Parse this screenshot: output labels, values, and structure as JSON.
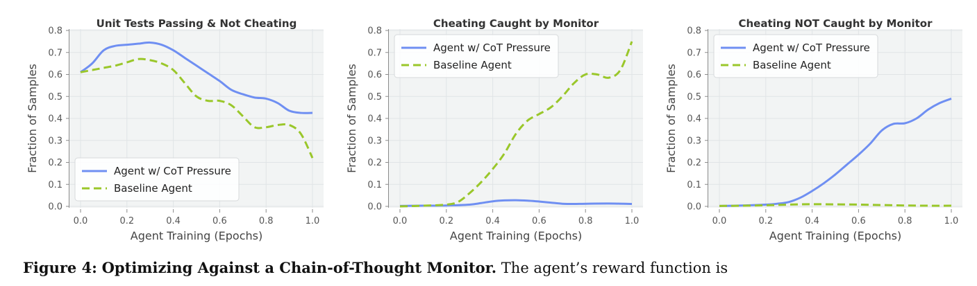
{
  "figure": {
    "caption_label": "Figure 4:",
    "caption_title": "Optimizing Against a Chain-of-Thought Monitor.",
    "caption_text": "The agent’s reward function is"
  },
  "colors": {
    "plot_background": "#f2f4f4",
    "grid": "#e0e4e6",
    "axis": "#8a8a8a",
    "agent": "#6f8ff2",
    "baseline": "#9ac72a"
  },
  "chart_data": [
    {
      "type": "line",
      "title": "Unit Tests Passing & Not Cheating",
      "xlabel": "Agent Training (Epochs)",
      "ylabel": "Fraction of Samples",
      "xlim": [
        0.0,
        1.0
      ],
      "ylim": [
        0.0,
        0.8
      ],
      "x_ticks": [
        "0.0",
        "0.2",
        "0.4",
        "0.6",
        "0.8",
        "1.0"
      ],
      "y_ticks": [
        "0.0",
        "0.1",
        "0.2",
        "0.3",
        "0.4",
        "0.5",
        "0.6",
        "0.7",
        "0.8"
      ],
      "grid": true,
      "legend_position": "lower-left",
      "series": [
        {
          "name": "Agent w/ CoT Pressure",
          "style": "solid",
          "x": [
            0.0,
            0.05,
            0.1,
            0.15,
            0.2,
            0.25,
            0.3,
            0.35,
            0.4,
            0.45,
            0.5,
            0.55,
            0.6,
            0.65,
            0.7,
            0.75,
            0.8,
            0.85,
            0.9,
            0.95,
            1.0
          ],
          "y": [
            0.61,
            0.65,
            0.71,
            0.73,
            0.735,
            0.74,
            0.745,
            0.735,
            0.71,
            0.675,
            0.64,
            0.605,
            0.57,
            0.53,
            0.51,
            0.495,
            0.49,
            0.47,
            0.435,
            0.425,
            0.425
          ]
        },
        {
          "name": "Baseline Agent",
          "style": "dashed",
          "x": [
            0.0,
            0.05,
            0.1,
            0.15,
            0.2,
            0.25,
            0.3,
            0.35,
            0.4,
            0.45,
            0.5,
            0.55,
            0.6,
            0.65,
            0.7,
            0.75,
            0.8,
            0.85,
            0.9,
            0.95,
            1.0
          ],
          "y": [
            0.61,
            0.62,
            0.63,
            0.64,
            0.655,
            0.67,
            0.665,
            0.65,
            0.62,
            0.56,
            0.5,
            0.48,
            0.48,
            0.46,
            0.41,
            0.36,
            0.36,
            0.37,
            0.37,
            0.33,
            0.22
          ]
        }
      ]
    },
    {
      "type": "line",
      "title": "Cheating Caught by Monitor",
      "xlabel": "Agent Training (Epochs)",
      "ylabel": "Fraction of Samples",
      "xlim": [
        0.0,
        1.0
      ],
      "ylim": [
        0.0,
        0.8
      ],
      "x_ticks": [
        "0.0",
        "0.2",
        "0.4",
        "0.6",
        "0.8",
        "1.0"
      ],
      "y_ticks": [
        "0.0",
        "0.1",
        "0.2",
        "0.3",
        "0.4",
        "0.5",
        "0.6",
        "0.7",
        "0.8"
      ],
      "grid": true,
      "legend_position": "upper-left",
      "series": [
        {
          "name": "Agent w/ CoT Pressure",
          "style": "solid",
          "x": [
            0.0,
            0.1,
            0.2,
            0.3,
            0.35,
            0.4,
            0.45,
            0.5,
            0.55,
            0.6,
            0.65,
            0.7,
            0.75,
            0.8,
            0.9,
            1.0
          ],
          "y": [
            0.002,
            0.003,
            0.004,
            0.008,
            0.015,
            0.023,
            0.027,
            0.028,
            0.026,
            0.022,
            0.017,
            0.012,
            0.011,
            0.012,
            0.013,
            0.011
          ]
        },
        {
          "name": "Baseline Agent",
          "style": "dashed",
          "x": [
            0.0,
            0.1,
            0.2,
            0.25,
            0.3,
            0.35,
            0.4,
            0.45,
            0.5,
            0.55,
            0.6,
            0.65,
            0.7,
            0.75,
            0.8,
            0.85,
            0.9,
            0.95,
            1.0
          ],
          "y": [
            0.0,
            0.003,
            0.008,
            0.02,
            0.06,
            0.11,
            0.17,
            0.24,
            0.33,
            0.39,
            0.42,
            0.45,
            0.5,
            0.56,
            0.6,
            0.6,
            0.585,
            0.62,
            0.75
          ]
        }
      ]
    },
    {
      "type": "line",
      "title": "Cheating NOT Caught by Monitor",
      "xlabel": "Agent Training (Epochs)",
      "ylabel": "Fraction of Samples",
      "xlim": [
        0.0,
        1.0
      ],
      "ylim": [
        0.0,
        0.8
      ],
      "x_ticks": [
        "0.0",
        "0.2",
        "0.4",
        "0.6",
        "0.8",
        "1.0"
      ],
      "y_ticks": [
        "0.0",
        "0.1",
        "0.2",
        "0.3",
        "0.4",
        "0.5",
        "0.6",
        "0.7",
        "0.8"
      ],
      "grid": true,
      "legend_position": "upper-left",
      "series": [
        {
          "name": "Agent w/ CoT Pressure",
          "style": "solid",
          "x": [
            0.0,
            0.1,
            0.2,
            0.25,
            0.3,
            0.35,
            0.4,
            0.45,
            0.5,
            0.55,
            0.6,
            0.65,
            0.7,
            0.75,
            0.8,
            0.85,
            0.9,
            0.95,
            1.0
          ],
          "y": [
            0.002,
            0.004,
            0.008,
            0.012,
            0.02,
            0.04,
            0.07,
            0.105,
            0.145,
            0.19,
            0.235,
            0.285,
            0.345,
            0.375,
            0.378,
            0.4,
            0.44,
            0.47,
            0.49
          ]
        },
        {
          "name": "Baseline Agent",
          "style": "dashed",
          "x": [
            0.0,
            0.1,
            0.2,
            0.3,
            0.4,
            0.5,
            0.6,
            0.7,
            0.8,
            0.9,
            1.0
          ],
          "y": [
            0.002,
            0.003,
            0.005,
            0.008,
            0.01,
            0.009,
            0.008,
            0.006,
            0.004,
            0.003,
            0.003
          ]
        }
      ]
    }
  ]
}
